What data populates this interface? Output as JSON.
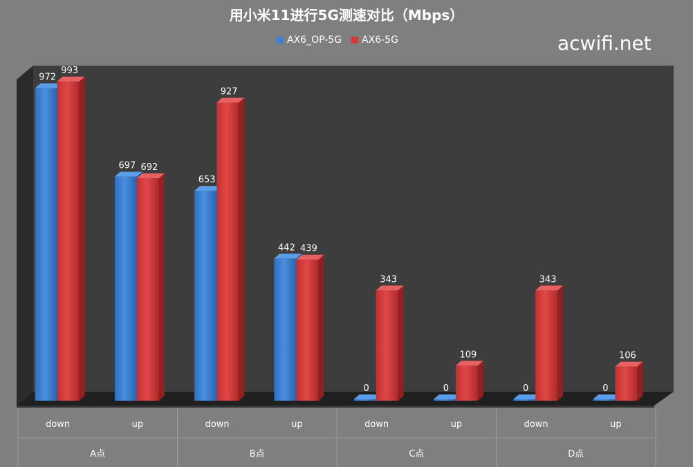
{
  "watermark": "acwifi.net",
  "chart_data": {
    "type": "bar",
    "title": "用小米11进行5G测速对比（Mbps）",
    "groups": [
      "A点",
      "B点",
      "C点",
      "D点"
    ],
    "categories": [
      "down",
      "up",
      "down",
      "up",
      "down",
      "up",
      "down",
      "up"
    ],
    "series": [
      {
        "name": "AX6_OP-5G",
        "color": "#3a7fd5",
        "values": [
          972,
          697,
          653,
          442,
          0,
          0,
          0,
          0
        ]
      },
      {
        "name": "AX6-5G",
        "color": "#d33a3a",
        "values": [
          993,
          692,
          927,
          439,
          343,
          109,
          343,
          106
        ]
      }
    ],
    "ylim": [
      0,
      1000
    ],
    "grid": false,
    "legend": "top-center",
    "data_labels": true,
    "style": "3d"
  }
}
